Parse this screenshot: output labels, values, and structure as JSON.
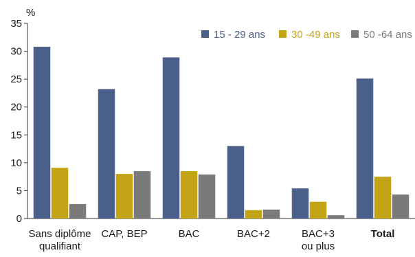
{
  "chart_data": {
    "type": "bar",
    "unit_label": "%",
    "categories": [
      {
        "lines": [
          "Sans diplôme",
          "qualifiant"
        ],
        "bold": false
      },
      {
        "lines": [
          "CAP, BEP"
        ],
        "bold": false
      },
      {
        "lines": [
          "BAC"
        ],
        "bold": false
      },
      {
        "lines": [
          "BAC+2"
        ],
        "bold": false
      },
      {
        "lines": [
          "BAC+3",
          "ou plus"
        ],
        "bold": false
      },
      {
        "lines": [
          "Total"
        ],
        "bold": true
      }
    ],
    "series": [
      {
        "name": "15 - 29 ans",
        "color": "#4a5f8a",
        "values": [
          30.8,
          23.2,
          28.9,
          13.0,
          5.4,
          25.1
        ]
      },
      {
        "name": "30 -49 ans",
        "color": "#c4a417",
        "values": [
          9.1,
          8.0,
          8.5,
          1.5,
          3.0,
          7.5
        ]
      },
      {
        "name": "50 -64 ans",
        "color": "#7a7a7a",
        "values": [
          2.6,
          8.5,
          7.9,
          1.6,
          0.6,
          4.3
        ]
      }
    ],
    "ylim": [
      0,
      35
    ],
    "yticks": [
      0,
      5,
      10,
      15,
      20,
      25,
      30,
      35
    ],
    "grid": false,
    "legend_position": "top-right"
  }
}
